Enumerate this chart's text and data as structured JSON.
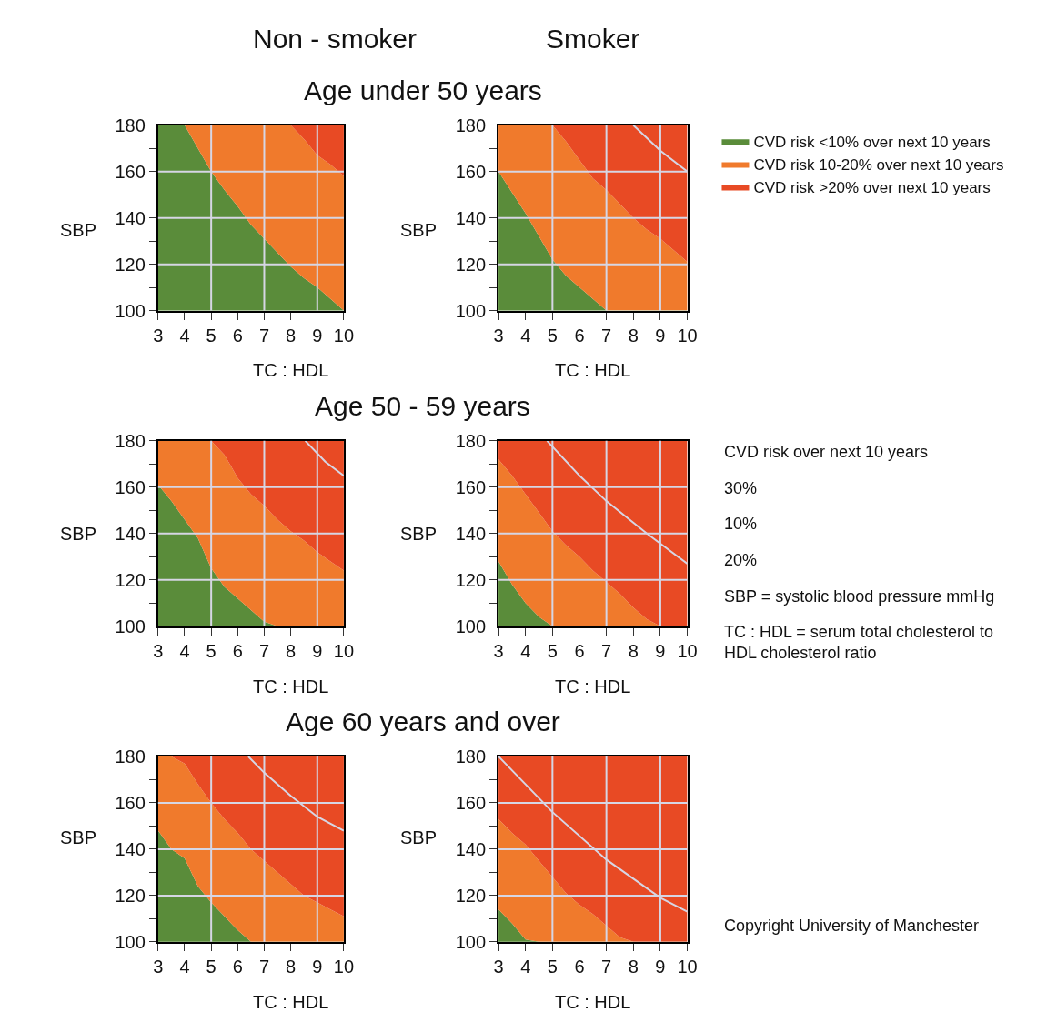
{
  "chart_data": [
    {
      "type": "area",
      "title": "Age under 50 years",
      "subtitle": "Non - smoker",
      "xlabel": "TC : HDL",
      "ylabel": "SBP",
      "xlim": [
        3,
        10
      ],
      "ylim": [
        100,
        180
      ],
      "xticks": [
        3,
        4,
        5,
        6,
        7,
        8,
        9,
        10
      ],
      "yticks": [
        100,
        {
          "value": 110,
          "label": null
        },
        120,
        {
          "value": 130,
          "label": null
        },
        140,
        {
          "value": 150,
          "label": null
        },
        160,
        {
          "value": 170,
          "label": null
        },
        180
      ],
      "x": [
        3,
        3.5,
        4,
        4.5,
        5,
        5.5,
        6,
        6.5,
        7,
        7.5,
        8,
        8.5,
        9,
        9.5,
        10
      ],
      "ref_lines": [
        {
          "axis": "x",
          "value": 5,
          "color": "#d6d6e4"
        },
        {
          "axis": "x",
          "value": 7,
          "color": "#d6d6e4"
        },
        {
          "axis": "x",
          "value": 9,
          "color": "#d6d6e4"
        },
        {
          "axis": "y",
          "value": 120,
          "color": "#d6d6e4"
        },
        {
          "axis": "y",
          "value": 140,
          "color": "#d6d6e4"
        },
        {
          "axis": "y",
          "value": 160,
          "color": "#d6d6e4"
        }
      ],
      "series": [
        {
          "color": "#5a8c3a",
          "values": [
            180,
            180,
            180,
            170,
            160,
            152,
            145,
            137,
            131,
            125,
            119,
            114,
            110,
            105,
            100
          ]
        },
        {
          "color": "#f07a2c",
          "values": [
            180,
            180,
            180,
            180,
            180,
            180,
            180,
            180,
            180,
            180,
            180,
            174,
            167,
            163,
            158
          ]
        },
        {
          "color": "#e84a24",
          "values": [
            180,
            180,
            180,
            180,
            180,
            180,
            180,
            180,
            180,
            180,
            180,
            180,
            180,
            180,
            180
          ]
        }
      ]
    },
    {
      "type": "area",
      "subtitle": "Smoker",
      "xlabel": "TC : HDL",
      "ylabel": "SBP",
      "legend": "right",
      "xlim": [
        3,
        10
      ],
      "ylim": [
        100,
        180
      ],
      "xticks": [
        3,
        4,
        5,
        6,
        7,
        8,
        9,
        10
      ],
      "yticks": [
        100,
        {
          "value": 110,
          "label": null
        },
        120,
        {
          "value": 130,
          "label": null
        },
        140,
        {
          "value": 150,
          "label": null
        },
        160,
        {
          "value": 170,
          "label": null
        },
        180
      ],
      "x": [
        3,
        3.5,
        4,
        4.5,
        5,
        5.5,
        6,
        6.5,
        7,
        7.5,
        8,
        8.5,
        9,
        9.5,
        10
      ],
      "ref_lines": [
        {
          "axis": "x",
          "value": 5,
          "color": "#d6d6e4"
        },
        {
          "axis": "x",
          "value": 7,
          "color": "#d6d6e4"
        },
        {
          "axis": "x",
          "value": 9,
          "color": "#d6d6e4"
        },
        {
          "axis": "y",
          "value": 120,
          "color": "#d6d6e4"
        },
        {
          "axis": "y",
          "value": 140,
          "color": "#d6d6e4"
        },
        {
          "axis": "y",
          "value": 160,
          "color": "#d6d6e4"
        }
      ],
      "series": [
        {
          "name": "CVD risk <10% over next 10 years",
          "color": "#5a8c3a",
          "values": [
            160,
            151,
            142,
            132,
            122,
            115,
            110,
            105,
            100,
            100,
            100,
            100,
            100,
            100,
            100
          ]
        },
        {
          "name": "CVD risk 10-20% over next 10 years",
          "color": "#f07a2c",
          "values": [
            180,
            180,
            180,
            180,
            180,
            173,
            165,
            157,
            152,
            146,
            140,
            135,
            131,
            126,
            121
          ]
        },
        {
          "name": "CVD risk >20% over next 10 years",
          "color": "#e84a24",
          "values": [
            180,
            180,
            180,
            180,
            180,
            180,
            180,
            180,
            180,
            180,
            180,
            180,
            180,
            180,
            180
          ]
        },
        {
          "type": "line",
          "color": "#d6d6e4",
          "x": [
            8,
            9,
            10
          ],
          "values": [
            180,
            169,
            160
          ]
        }
      ]
    },
    {
      "type": "area",
      "title": "Age 50 - 59 years",
      "xlabel": "TC : HDL",
      "ylabel": "SBP",
      "xlim": [
        3,
        10
      ],
      "ylim": [
        100,
        180
      ],
      "xticks": [
        3,
        4,
        5,
        6,
        7,
        8,
        9,
        10
      ],
      "yticks": [
        100,
        {
          "value": 110,
          "label": null
        },
        120,
        {
          "value": 130,
          "label": null
        },
        140,
        {
          "value": 150,
          "label": null
        },
        160,
        {
          "value": 170,
          "label": null
        },
        180
      ],
      "x": [
        3,
        3.5,
        4,
        4.5,
        5,
        5.5,
        6,
        6.5,
        7,
        7.5,
        8,
        8.5,
        9,
        9.5,
        10
      ],
      "ref_lines": [
        {
          "axis": "x",
          "value": 5,
          "color": "#d6d6e4"
        },
        {
          "axis": "x",
          "value": 7,
          "color": "#d6d6e4"
        },
        {
          "axis": "x",
          "value": 9,
          "color": "#d6d6e4"
        },
        {
          "axis": "y",
          "value": 120,
          "color": "#d6d6e4"
        },
        {
          "axis": "y",
          "value": 140,
          "color": "#d6d6e4"
        },
        {
          "axis": "y",
          "value": 160,
          "color": "#d6d6e4"
        }
      ],
      "series": [
        {
          "color": "#5a8c3a",
          "values": [
            161,
            154,
            146,
            138,
            125,
            117,
            112,
            107,
            102,
            100,
            100,
            100,
            100,
            100,
            100
          ]
        },
        {
          "color": "#f07a2c",
          "values": [
            180,
            180,
            180,
            180,
            180,
            174,
            164,
            157,
            152,
            146,
            141,
            137,
            132,
            128,
            124
          ]
        },
        {
          "color": "#e84a24",
          "values": [
            180,
            180,
            180,
            180,
            180,
            180,
            180,
            180,
            180,
            180,
            180,
            180,
            180,
            180,
            180
          ]
        },
        {
          "type": "line",
          "color": "#d6d6e4",
          "x": [
            8.55,
            9.3,
            10
          ],
          "values": [
            180,
            171,
            165
          ]
        }
      ]
    },
    {
      "type": "area",
      "xlabel": "TC : HDL",
      "ylabel": "SBP",
      "xlim": [
        3,
        10
      ],
      "ylim": [
        100,
        180
      ],
      "xticks": [
        3,
        4,
        5,
        6,
        7,
        8,
        9,
        10
      ],
      "yticks": [
        100,
        {
          "value": 110,
          "label": null
        },
        120,
        {
          "value": 130,
          "label": null
        },
        140,
        {
          "value": 150,
          "label": null
        },
        160,
        {
          "value": 170,
          "label": null
        },
        180
      ],
      "x": [
        3,
        3.5,
        4,
        4.5,
        5,
        5.5,
        6,
        6.5,
        7,
        7.5,
        8,
        8.5,
        9,
        9.5,
        10
      ],
      "ref_lines": [
        {
          "axis": "x",
          "value": 5,
          "color": "#d6d6e4"
        },
        {
          "axis": "x",
          "value": 7,
          "color": "#d6d6e4"
        },
        {
          "axis": "x",
          "value": 9,
          "color": "#d6d6e4"
        },
        {
          "axis": "y",
          "value": 120,
          "color": "#d6d6e4"
        },
        {
          "axis": "y",
          "value": 140,
          "color": "#d6d6e4"
        },
        {
          "axis": "y",
          "value": 160,
          "color": "#d6d6e4"
        }
      ],
      "annotations": [
        "CVD risk over next 10 years",
        "30%",
        "10%",
        "20%",
        "SBP = systolic blood pressure mmHg",
        "TC : HDL = serum total cholesterol to HDL cholesterol ratio"
      ],
      "series": [
        {
          "color": "#5a8c3a",
          "values": [
            128,
            118,
            110,
            104,
            100,
            100,
            100,
            100,
            100,
            100,
            100,
            100,
            100,
            100,
            100
          ]
        },
        {
          "color": "#f07a2c",
          "values": [
            172,
            165,
            157,
            149,
            141,
            135,
            130,
            124,
            119,
            114,
            108,
            103,
            100,
            100,
            100
          ]
        },
        {
          "color": "#e84a24",
          "values": [
            180,
            180,
            180,
            180,
            180,
            180,
            180,
            180,
            180,
            180,
            180,
            180,
            180,
            180,
            180
          ]
        },
        {
          "type": "line",
          "color": "#d6d6e4",
          "x": [
            4.8,
            6,
            7,
            8.5,
            10
          ],
          "values": [
            180,
            165,
            154,
            140,
            127
          ]
        }
      ]
    },
    {
      "type": "area",
      "title": "Age 60 years and over",
      "xlabel": "TC : HDL",
      "ylabel": "SBP",
      "xlim": [
        3,
        10
      ],
      "ylim": [
        100,
        180
      ],
      "xticks": [
        3,
        4,
        5,
        6,
        7,
        8,
        9,
        10
      ],
      "yticks": [
        100,
        {
          "value": 110,
          "label": null
        },
        120,
        {
          "value": 130,
          "label": null
        },
        140,
        {
          "value": 150,
          "label": null
        },
        160,
        {
          "value": 170,
          "label": null
        },
        180
      ],
      "x": [
        3,
        3.5,
        4,
        4.5,
        5,
        5.5,
        6,
        6.5,
        7,
        7.5,
        8,
        8.5,
        9,
        9.5,
        10
      ],
      "ref_lines": [
        {
          "axis": "x",
          "value": 5,
          "color": "#d6d6e4"
        },
        {
          "axis": "x",
          "value": 7,
          "color": "#d6d6e4"
        },
        {
          "axis": "x",
          "value": 9,
          "color": "#d6d6e4"
        },
        {
          "axis": "y",
          "value": 120,
          "color": "#d6d6e4"
        },
        {
          "axis": "y",
          "value": 140,
          "color": "#d6d6e4"
        },
        {
          "axis": "y",
          "value": 160,
          "color": "#d6d6e4"
        }
      ],
      "series": [
        {
          "color": "#5a8c3a",
          "values": [
            148,
            140,
            136,
            124,
            117,
            111,
            105,
            100,
            100,
            100,
            100,
            100,
            100,
            100,
            100
          ]
        },
        {
          "color": "#f07a2c",
          "values": [
            180,
            180,
            177,
            168,
            160,
            153,
            147,
            140,
            135,
            130,
            125,
            120,
            117,
            114,
            111
          ]
        },
        {
          "color": "#e84a24",
          "values": [
            180,
            180,
            180,
            180,
            180,
            180,
            180,
            180,
            180,
            180,
            180,
            180,
            180,
            180,
            180
          ]
        },
        {
          "type": "line",
          "color": "#d6d6e4",
          "x": [
            6.4,
            7,
            8,
            9,
            10
          ],
          "values": [
            180,
            173,
            163,
            154,
            148
          ]
        }
      ]
    },
    {
      "type": "area",
      "xlabel": "TC : HDL",
      "ylabel": "SBP",
      "xlim": [
        3,
        10
      ],
      "ylim": [
        100,
        180
      ],
      "xticks": [
        3,
        4,
        5,
        6,
        7,
        8,
        9,
        10
      ],
      "yticks": [
        100,
        {
          "value": 110,
          "label": null
        },
        120,
        {
          "value": 130,
          "label": null
        },
        140,
        {
          "value": 150,
          "label": null
        },
        160,
        {
          "value": 170,
          "label": null
        },
        180
      ],
      "x": [
        3,
        3.5,
        4,
        4.5,
        5,
        5.5,
        6,
        6.5,
        7,
        7.5,
        8,
        8.5,
        9,
        9.5,
        10
      ],
      "ref_lines": [
        {
          "axis": "x",
          "value": 5,
          "color": "#d6d6e4"
        },
        {
          "axis": "x",
          "value": 7,
          "color": "#d6d6e4"
        },
        {
          "axis": "x",
          "value": 9,
          "color": "#d6d6e4"
        },
        {
          "axis": "y",
          "value": 120,
          "color": "#d6d6e4"
        },
        {
          "axis": "y",
          "value": 140,
          "color": "#d6d6e4"
        },
        {
          "axis": "y",
          "value": 160,
          "color": "#d6d6e4"
        }
      ],
      "annotations": [
        "Copyright University of Manchester"
      ],
      "series": [
        {
          "color": "#5a8c3a",
          "values": [
            114,
            108,
            101,
            100,
            100,
            100,
            100,
            100,
            100,
            100,
            100,
            100,
            100,
            100,
            100
          ]
        },
        {
          "color": "#f07a2c",
          "values": [
            153,
            147,
            142,
            135,
            128,
            121,
            116,
            112,
            107,
            102,
            100,
            100,
            100,
            100,
            100
          ]
        },
        {
          "color": "#e84a24",
          "values": [
            180,
            180,
            180,
            180,
            180,
            180,
            180,
            180,
            180,
            180,
            180,
            180,
            180,
            180,
            180
          ]
        },
        {
          "type": "line",
          "color": "#d6d6e4",
          "x": [
            3,
            5,
            7,
            9,
            10
          ],
          "values": [
            180,
            156,
            135.5,
            119,
            113
          ]
        }
      ]
    }
  ]
}
